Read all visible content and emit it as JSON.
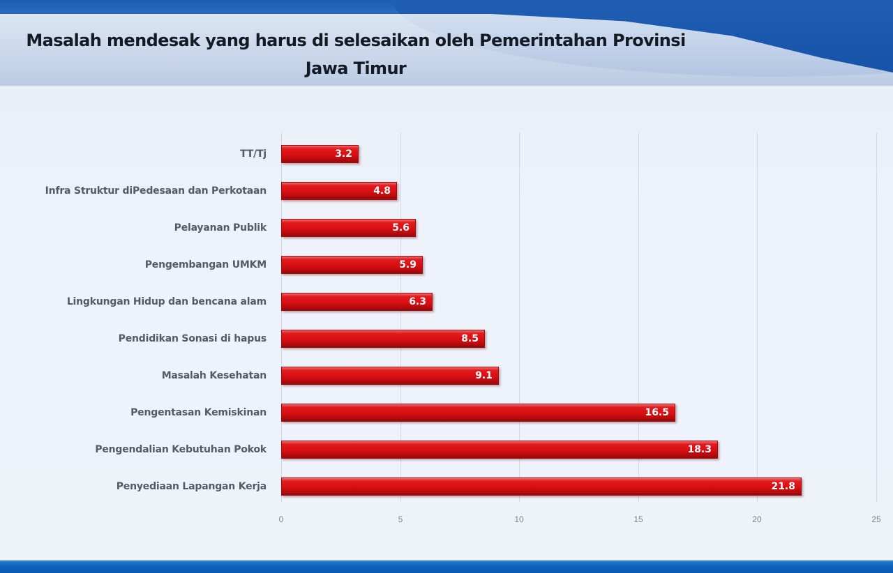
{
  "title": {
    "line1": "Masalah mendesak yang harus di selesaikan oleh Pemerintahan Provinsi",
    "line2": "Jawa Timur"
  },
  "colors": {
    "bar": "#d90f12",
    "header_blue": "#1552a8",
    "background": "#eef2f9"
  },
  "chart_data": {
    "type": "bar",
    "orientation": "horizontal",
    "title": "Masalah mendesak yang harus di selesaikan oleh Pemerintahan Provinsi Jawa Timur",
    "xlabel": "",
    "ylabel": "",
    "xlim": [
      0,
      25
    ],
    "x_ticks": [
      "0",
      "5",
      "10",
      "15",
      "20",
      "25"
    ],
    "grid": true,
    "legend": "none",
    "data_labels": true,
    "categories": [
      "TT/Tj",
      "Infra Struktur diPedesaan dan Perkotaan",
      "Pelayanan Publik",
      "Pengembangan UMKM",
      "Lingkungan Hidup dan bencana alam",
      "Pendidikan Sonasi di hapus",
      "Masalah Kesehatan",
      "Pengentasan Kemiskinan",
      "Pengendalian Kebutuhan Pokok",
      "Penyediaan Lapangan Kerja"
    ],
    "values": [
      3.2,
      4.8,
      5.6,
      5.9,
      6.3,
      8.5,
      9.1,
      16.5,
      18.3,
      21.8
    ],
    "value_labels": [
      "3.2",
      "4.8",
      "5.6",
      "5.9",
      "6.3",
      "8.5",
      "9.1",
      "16.5",
      "18.3",
      "21.8"
    ]
  }
}
